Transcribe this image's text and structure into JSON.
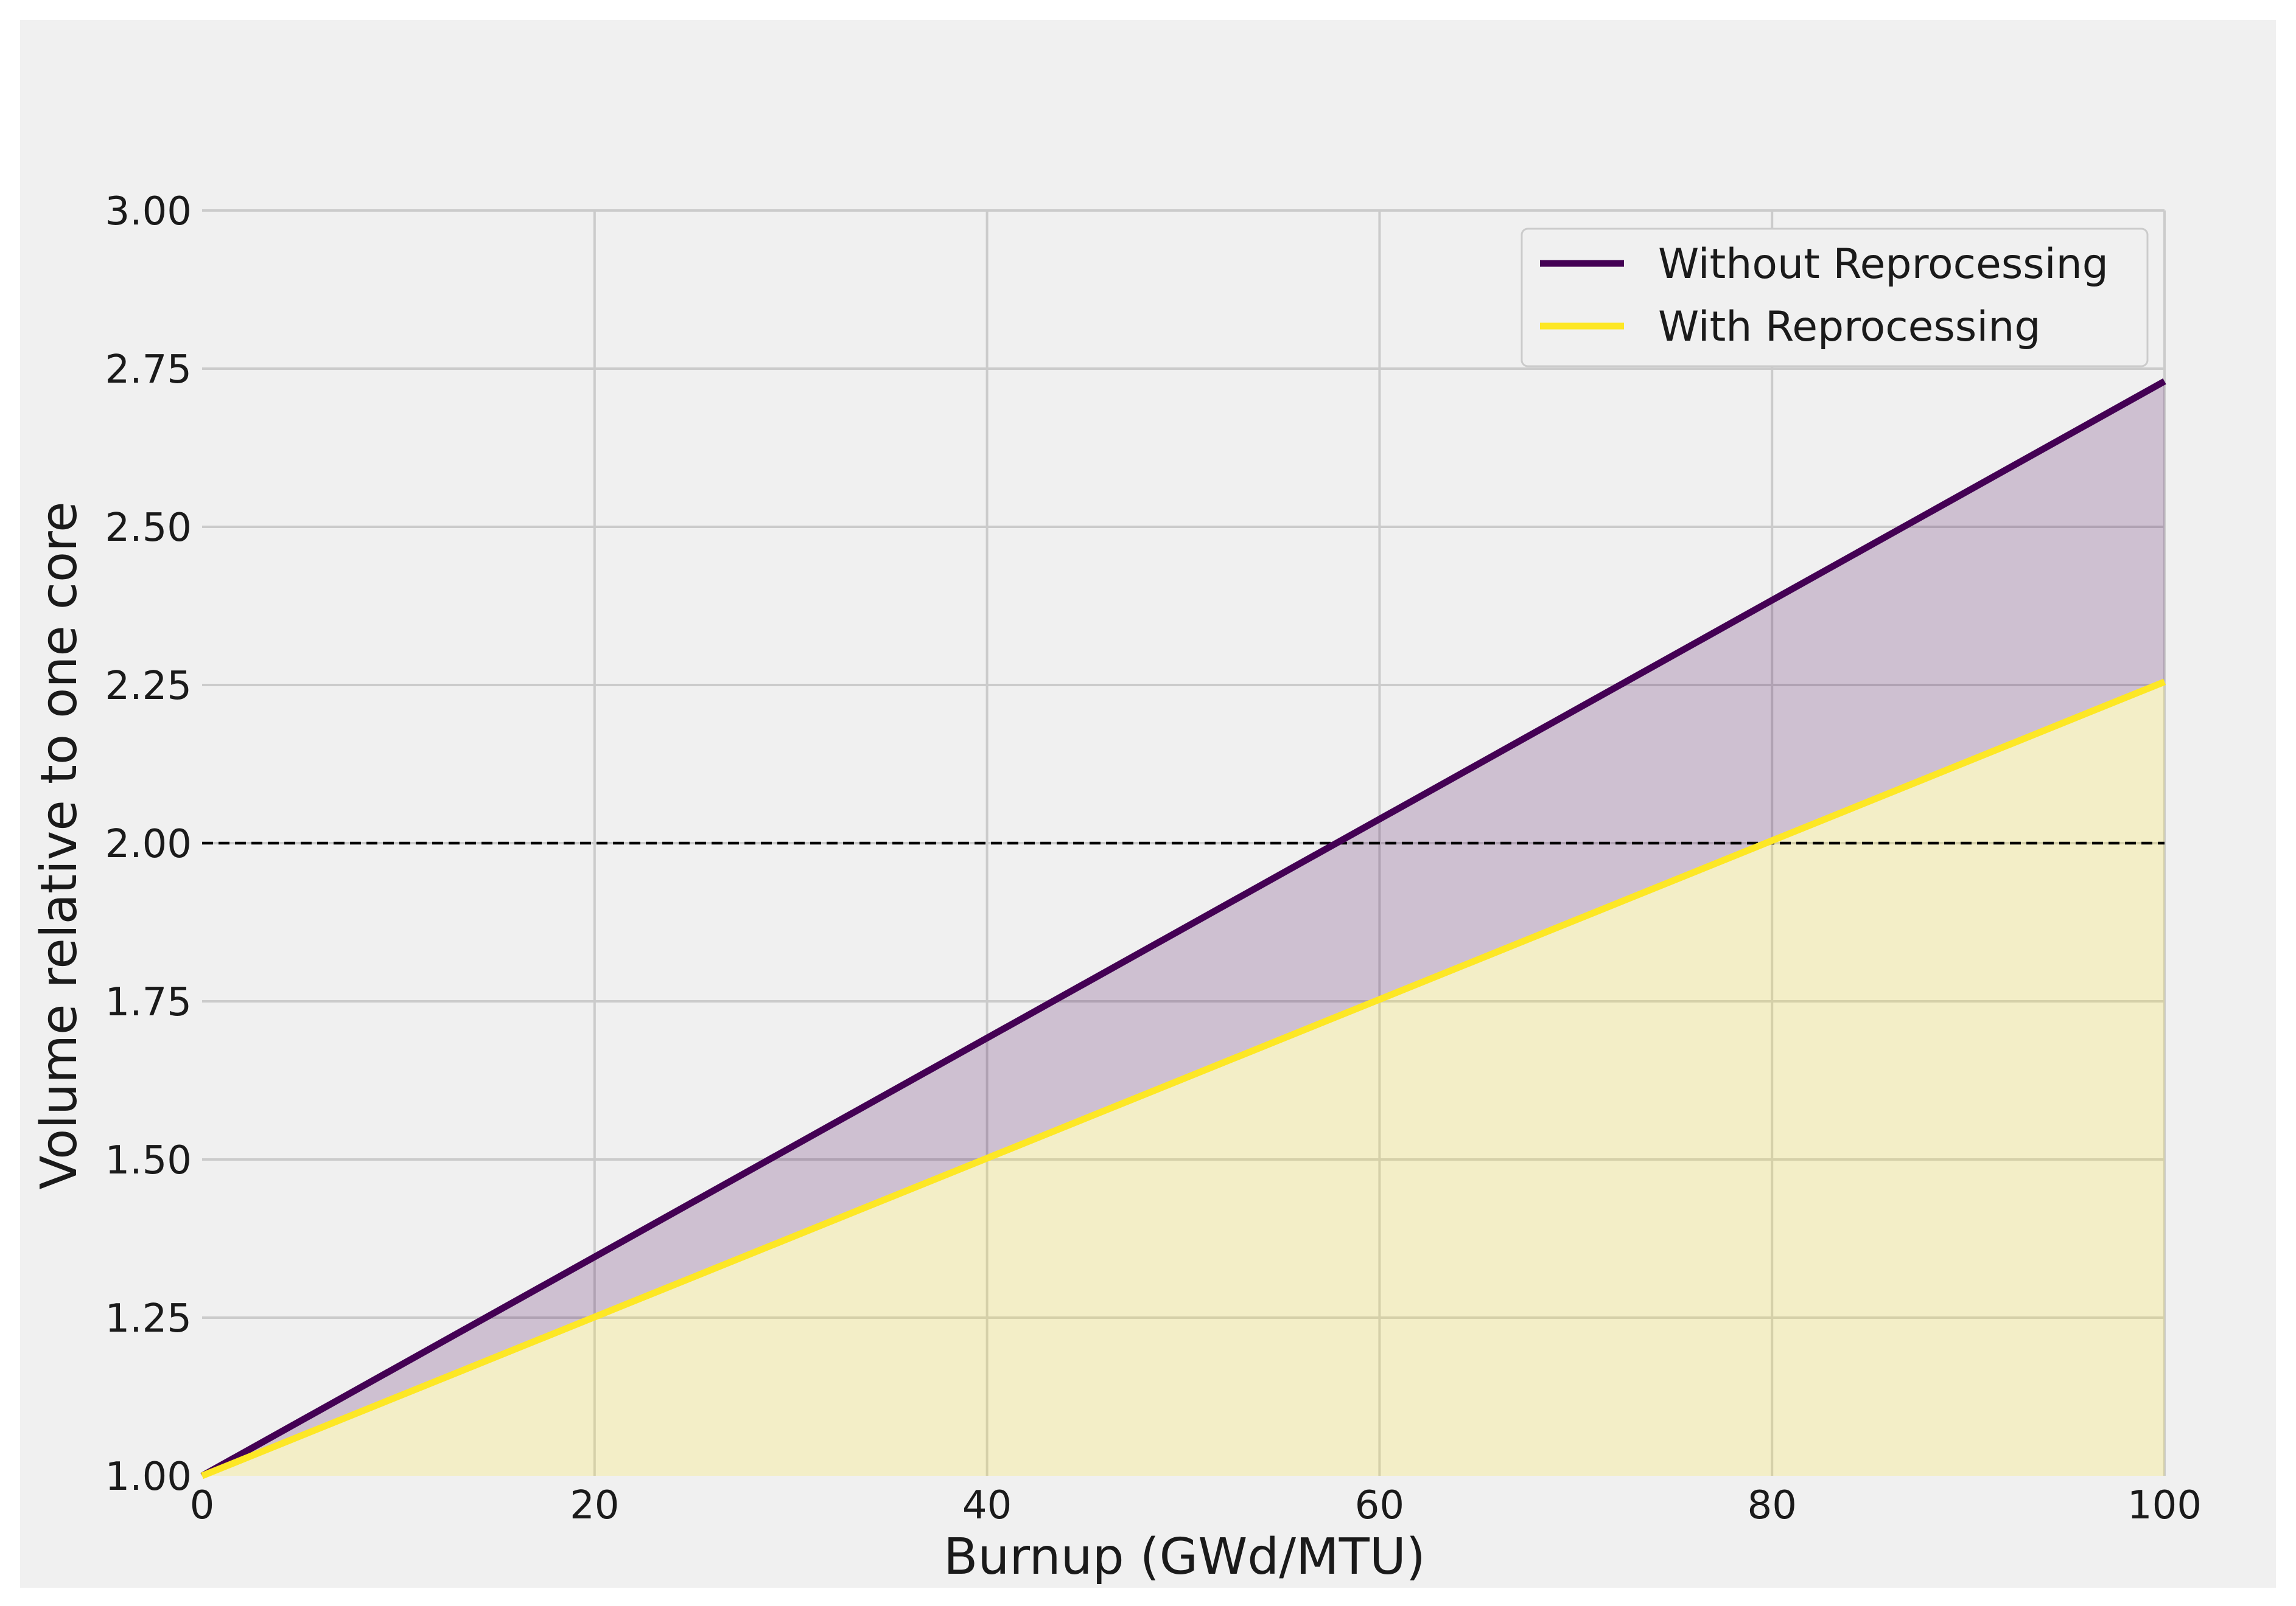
{
  "colors": {
    "figure_background": "#f0f0f0",
    "plot_background": "#f0f0f0",
    "grid": "#cbcbcb",
    "without_reprocessing": "#440154",
    "with_reprocessing": "#fde725",
    "fill_between": "#440154",
    "fill_under": "#fde725",
    "reference_line": "#000000"
  },
  "chart_data": {
    "type": "line",
    "title": "",
    "xlabel": "Burnup (GWd/MTU)",
    "ylabel": "Volume relative to one core",
    "xlim": [
      0,
      100
    ],
    "ylim": [
      1.0,
      3.0
    ],
    "xticks": [
      0,
      20,
      40,
      60,
      80,
      100
    ],
    "xtick_labels": [
      "0",
      "20",
      "40",
      "60",
      "80",
      "100"
    ],
    "yticks": [
      1.0,
      1.25,
      1.5,
      1.75,
      2.0,
      2.25,
      2.5,
      2.75,
      3.0
    ],
    "ytick_labels": [
      "1.00",
      "1.25",
      "1.50",
      "1.75",
      "2.00",
      "2.25",
      "2.50",
      "2.75",
      "3.00"
    ],
    "grid": true,
    "legend_position": "top-right",
    "series": [
      {
        "name": "Without Reprocessing",
        "x": [
          0,
          100
        ],
        "y": [
          1.0,
          2.73
        ],
        "color_key": "without_reprocessing"
      },
      {
        "name": "With Reprocessing",
        "x": [
          0,
          100
        ],
        "y": [
          1.0,
          2.255
        ],
        "color_key": "with_reprocessing"
      }
    ],
    "reference_line": {
      "y": 2.0,
      "style": "dashed"
    },
    "fills": [
      {
        "between": [
          "With Reprocessing",
          "Without Reprocessing"
        ],
        "color_key": "fill_between",
        "opacity": 0.2
      },
      {
        "between": [
          "baseline",
          "With Reprocessing"
        ],
        "color_key": "fill_under",
        "opacity": 0.2
      }
    ]
  }
}
